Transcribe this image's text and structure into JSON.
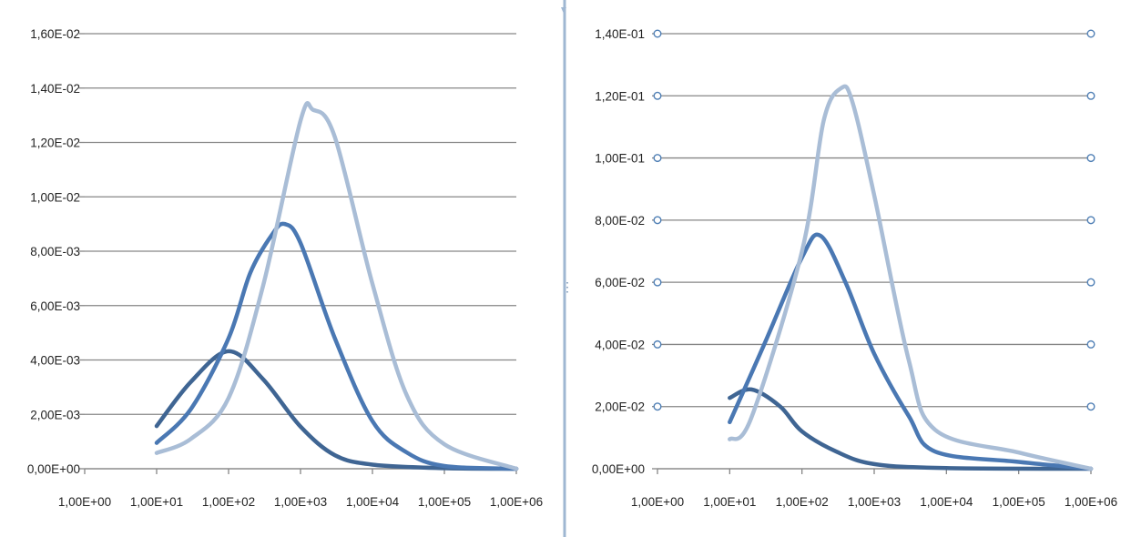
{
  "chart_data": [
    {
      "type": "line",
      "title": "",
      "xlabel": "",
      "ylabel": "",
      "x_scale": "log",
      "xlim": [
        1,
        1000000
      ],
      "ylim": [
        0,
        0.016
      ],
      "grid": "horizontal",
      "legend": "none",
      "x_ticks": [
        "1,00E+00",
        "1,00E+01",
        "1,00E+02",
        "1,00E+03",
        "1,00E+04",
        "1,00E+05",
        "1,00E+06"
      ],
      "y_ticks": [
        "0,00E+00",
        "2,00E-03",
        "4,00E-03",
        "6,00E-03",
        "8,00E-03",
        "1,00E-02",
        "1,20E-02",
        "1,40E-02",
        "1,60E-02"
      ],
      "series": [
        {
          "color": "#3f6593",
          "points": [
            [
              10,
              0.00157
            ],
            [
              30,
              0.0032
            ],
            [
              100,
              0.00432
            ],
            [
              300,
              0.0033
            ],
            [
              1000,
              0.00155
            ],
            [
              3000,
              0.0005
            ],
            [
              10000,
              0.00015
            ],
            [
              100000,
              2e-05
            ],
            [
              1000000,
              0.0
            ]
          ]
        },
        {
          "color": "#4a78b3",
          "points": [
            [
              10,
              0.00095
            ],
            [
              30,
              0.0022
            ],
            [
              100,
              0.0048
            ],
            [
              200,
              0.0072
            ],
            [
              400,
              0.0086
            ],
            [
              600,
              0.009
            ],
            [
              1000,
              0.0083
            ],
            [
              3000,
              0.0048
            ],
            [
              10000,
              0.00175
            ],
            [
              30000,
              0.0006
            ],
            [
              100000,
              0.0001
            ],
            [
              1000000,
              0.0
            ]
          ]
        },
        {
          "color": "#a9bdd6",
          "points": [
            [
              10,
              0.00058
            ],
            [
              30,
              0.0011
            ],
            [
              100,
              0.0026
            ],
            [
              300,
              0.0067
            ],
            [
              1000,
              0.0128
            ],
            [
              1500,
              0.0132
            ],
            [
              3000,
              0.0122
            ],
            [
              10000,
              0.0068
            ],
            [
              30000,
              0.0027
            ],
            [
              100000,
              0.0009
            ],
            [
              1000000,
              0.0
            ]
          ]
        }
      ]
    },
    {
      "type": "line",
      "title": "",
      "xlabel": "",
      "ylabel": "",
      "x_scale": "log",
      "xlim": [
        1,
        1000000
      ],
      "ylim": [
        0,
        0.14
      ],
      "grid": "horizontal",
      "legend": "none",
      "x_ticks": [
        "1,00E+00",
        "1,00E+01",
        "1,00E+02",
        "1,00E+03",
        "1,00E+04",
        "1,00E+05",
        "1,00E+06"
      ],
      "y_ticks": [
        "0,00E+00",
        "2,00E-02",
        "4,00E-02",
        "6,00E-02",
        "8,00E-02",
        "1,00E-01",
        "1,20E-01",
        "1,40E-01"
      ],
      "series": [
        {
          "color": "#3f6593",
          "points": [
            [
              10,
              0.0228
            ],
            [
              20,
              0.0255
            ],
            [
              50,
              0.02
            ],
            [
              100,
              0.012
            ],
            [
              300,
              0.0055
            ],
            [
              1000,
              0.0015
            ],
            [
              10000,
              0.0002
            ],
            [
              1000000,
              0.0
            ]
          ]
        },
        {
          "color": "#4a78b3",
          "points": [
            [
              10,
              0.015
            ],
            [
              30,
              0.04
            ],
            [
              100,
              0.068
            ],
            [
              180,
              0.075
            ],
            [
              400,
              0.06
            ],
            [
              1000,
              0.037
            ],
            [
              3000,
              0.017
            ],
            [
              7000,
              0.0055
            ],
            [
              100000,
              0.0022
            ],
            [
              1000000,
              0.0
            ]
          ]
        },
        {
          "color": "#a9bdd6",
          "points": [
            [
              10,
              0.0095
            ],
            [
              20,
              0.0165
            ],
            [
              100,
              0.07
            ],
            [
              200,
              0.112
            ],
            [
              350,
              0.1225
            ],
            [
              500,
              0.118
            ],
            [
              1000,
              0.088
            ],
            [
              3000,
              0.035
            ],
            [
              7000,
              0.0125
            ],
            [
              100000,
              0.0052
            ],
            [
              1000000,
              0.0
            ]
          ]
        }
      ]
    }
  ]
}
